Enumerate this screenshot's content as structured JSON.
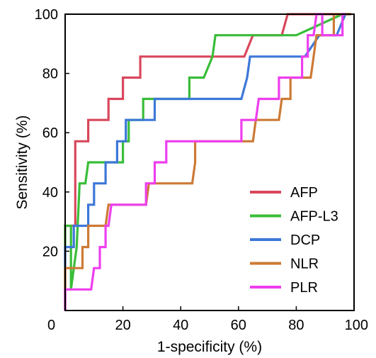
{
  "chart_data": {
    "type": "line",
    "subtype": "roc-step",
    "xlabel": "1-specificity (%)",
    "ylabel": "Sensitivity (%)",
    "xlim": [
      0,
      100
    ],
    "ylim": [
      0,
      100
    ],
    "xticks": [
      0,
      20,
      40,
      60,
      80,
      100
    ],
    "yticks": [
      20,
      40,
      60,
      80,
      100
    ],
    "grid": false,
    "legend_position": "bottom-right",
    "series": [
      {
        "name": "AFP",
        "color": "#d9475c",
        "points": [
          [
            0,
            0
          ],
          [
            0,
            28.6
          ],
          [
            3.5,
            28.6
          ],
          [
            3.5,
            57.1
          ],
          [
            8,
            57.1
          ],
          [
            8,
            64.3
          ],
          [
            15,
            64.3
          ],
          [
            15,
            71.4
          ],
          [
            20,
            71.4
          ],
          [
            20,
            78.6
          ],
          [
            26,
            78.6
          ],
          [
            26,
            85.7
          ],
          [
            62,
            85.7
          ],
          [
            62,
            85.7
          ],
          [
            65,
            92.9
          ],
          [
            75,
            92.9
          ],
          [
            77,
            100
          ],
          [
            99,
            100
          ]
        ]
      },
      {
        "name": "AFP-L3",
        "color": "#39bd39",
        "points": [
          [
            0,
            0
          ],
          [
            0,
            28.6
          ],
          [
            2,
            28.6
          ],
          [
            2,
            7.1
          ],
          [
            4,
            21.4
          ],
          [
            5,
            42.9
          ],
          [
            7,
            42.9
          ],
          [
            8,
            50
          ],
          [
            20,
            50
          ],
          [
            20,
            57.1
          ],
          [
            22,
            57.1
          ],
          [
            22,
            64.3
          ],
          [
            27,
            64.3
          ],
          [
            27,
            71.4
          ],
          [
            43,
            71.4
          ],
          [
            43,
            78.6
          ],
          [
            48,
            78.6
          ],
          [
            51,
            85.7
          ],
          [
            52,
            92.9
          ],
          [
            80,
            92.9
          ],
          [
            96,
            100
          ],
          [
            99,
            100
          ]
        ]
      },
      {
        "name": "DCP",
        "color": "#3d78d8",
        "points": [
          [
            0,
            0
          ],
          [
            0,
            21.4
          ],
          [
            3,
            21.4
          ],
          [
            3,
            28.6
          ],
          [
            8,
            28.6
          ],
          [
            8,
            35.7
          ],
          [
            10,
            35.7
          ],
          [
            10,
            42.9
          ],
          [
            14,
            42.9
          ],
          [
            14,
            50
          ],
          [
            18,
            50
          ],
          [
            18,
            57.1
          ],
          [
            21,
            57.1
          ],
          [
            21,
            64.3
          ],
          [
            31,
            64.3
          ],
          [
            31,
            71.4
          ],
          [
            61,
            71.4
          ],
          [
            63,
            78.6
          ],
          [
            64,
            85.7
          ],
          [
            83,
            85.7
          ],
          [
            88,
            92.9
          ],
          [
            94,
            92.9
          ],
          [
            97,
            100
          ],
          [
            99,
            100
          ]
        ]
      },
      {
        "name": "NLR",
        "color": "#cd7a35",
        "points": [
          [
            0,
            0
          ],
          [
            0,
            14.3
          ],
          [
            6,
            14.3
          ],
          [
            6,
            21.4
          ],
          [
            8,
            21.4
          ],
          [
            8,
            28.6
          ],
          [
            14,
            28.6
          ],
          [
            15,
            35.7
          ],
          [
            28,
            35.7
          ],
          [
            29,
            42.9
          ],
          [
            44,
            42.9
          ],
          [
            45,
            50
          ],
          [
            45,
            57.1
          ],
          [
            65,
            57.1
          ],
          [
            66,
            64.3
          ],
          [
            74,
            64.3
          ],
          [
            75,
            71.4
          ],
          [
            78,
            71.4
          ],
          [
            78,
            78.6
          ],
          [
            85,
            78.6
          ],
          [
            86,
            85.7
          ],
          [
            87,
            92.9
          ],
          [
            93,
            92.9
          ],
          [
            93,
            100
          ],
          [
            99,
            100
          ]
        ]
      },
      {
        "name": "PLR",
        "color": "#ee3eee",
        "points": [
          [
            0,
            0
          ],
          [
            0,
            7.1
          ],
          [
            9,
            7.1
          ],
          [
            10,
            14.3
          ],
          [
            12,
            14.3
          ],
          [
            12,
            21.4
          ],
          [
            14,
            21.4
          ],
          [
            14,
            28.6
          ],
          [
            15,
            28.6
          ],
          [
            16,
            35.7
          ],
          [
            28,
            35.7
          ],
          [
            28,
            42.9
          ],
          [
            31,
            42.9
          ],
          [
            31,
            50
          ],
          [
            35,
            50
          ],
          [
            35,
            57.1
          ],
          [
            61,
            57.1
          ],
          [
            61,
            64.3
          ],
          [
            66,
            64.3
          ],
          [
            67,
            71.4
          ],
          [
            74,
            71.4
          ],
          [
            74,
            78.6
          ],
          [
            82,
            78.6
          ],
          [
            82,
            85.7
          ],
          [
            84,
            85.7
          ],
          [
            84,
            92.9
          ],
          [
            86,
            92.9
          ],
          [
            87,
            100
          ],
          [
            89,
            100
          ],
          [
            89,
            92.9
          ],
          [
            96,
            92.9
          ],
          [
            96,
            100
          ],
          [
            97,
            100
          ]
        ]
      }
    ]
  }
}
